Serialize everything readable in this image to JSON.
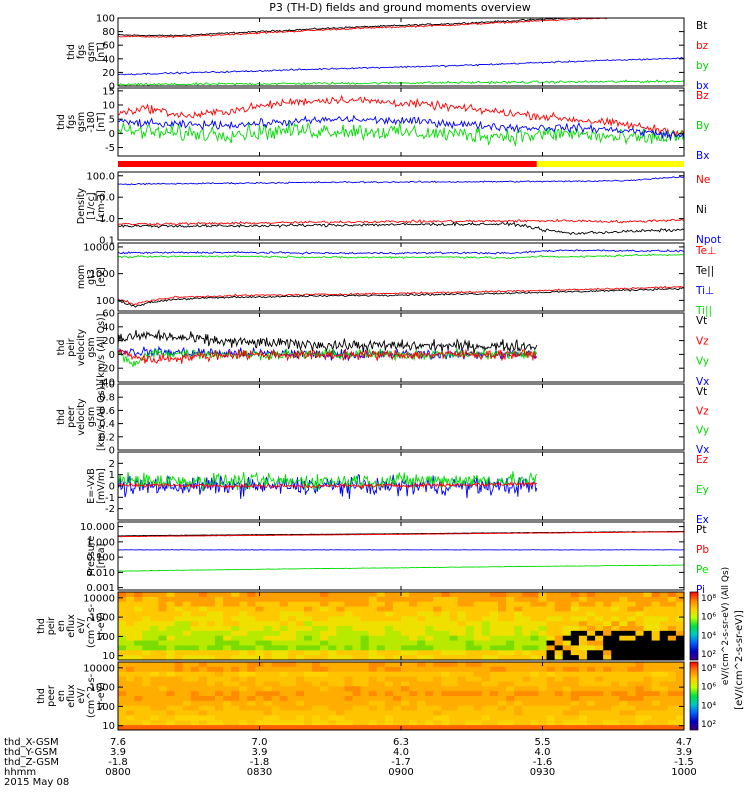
{
  "title": "P3 (TH-D) fields and ground moments overview",
  "colors": {
    "black": "#000000",
    "red": "#ff0000",
    "green": "#00dd00",
    "blue": "#0000ff",
    "yellow": "#ffff00"
  },
  "chart_data": [
    {
      "type": "line",
      "id": "fgs_gsm",
      "ylabel": [
        "thd",
        "fgs",
        "gsm",
        "[nT]"
      ],
      "ylim": [
        0,
        100
      ],
      "yticks": [
        0,
        20,
        40,
        60,
        80,
        100
      ],
      "legend": [
        {
          "text": "Bt",
          "color": "black"
        },
        {
          "text": "bz",
          "color": "red"
        },
        {
          "text": "by",
          "color": "green"
        },
        {
          "text": "bx",
          "color": "blue"
        }
      ],
      "series": [
        {
          "name": "Bt",
          "color": "black",
          "x": [
            0,
            0.1,
            0.2,
            0.3,
            0.4,
            0.5,
            0.6,
            0.7,
            0.8,
            0.9,
            1.0
          ],
          "values": [
            75,
            74,
            78,
            82,
            86,
            89,
            92,
            96,
            100,
            103,
            106
          ],
          "noise": 1
        },
        {
          "name": "bz",
          "color": "red",
          "x": [
            0,
            0.1,
            0.2,
            0.3,
            0.4,
            0.5,
            0.6,
            0.7,
            0.8,
            0.9,
            1.0
          ],
          "values": [
            73,
            72,
            76,
            80,
            84,
            87,
            90,
            94,
            98,
            101,
            104
          ],
          "noise": 1
        },
        {
          "name": "by",
          "color": "green",
          "x": [
            0,
            0.2,
            0.4,
            0.6,
            0.8,
            1.0
          ],
          "values": [
            2,
            3,
            4,
            5,
            6,
            7
          ],
          "noise": 1.5
        },
        {
          "name": "bx",
          "color": "blue",
          "x": [
            0,
            0.2,
            0.4,
            0.6,
            0.8,
            1.0
          ],
          "values": [
            17,
            21,
            26,
            30,
            36,
            41
          ],
          "noise": 1
        }
      ]
    },
    {
      "type": "line",
      "id": "fgs_mfa",
      "ylabel": [
        "thd",
        "fgs",
        "gsm",
        "-180",
        "[nT]"
      ],
      "ylim": [
        -8,
        16
      ],
      "yticks": [
        -5,
        0,
        5,
        10,
        15
      ],
      "legend": [
        {
          "text": "Bz",
          "color": "red"
        },
        {
          "text": "By",
          "color": "green"
        },
        {
          "text": "Bx",
          "color": "blue"
        }
      ],
      "series": [
        {
          "name": "Bz",
          "color": "red",
          "x": [
            0,
            0.05,
            0.12,
            0.2,
            0.3,
            0.4,
            0.55,
            0.7,
            0.8,
            0.9,
            1.0
          ],
          "values": [
            7,
            9,
            6,
            8,
            11,
            12,
            10,
            7,
            5,
            3,
            0
          ],
          "noise": 1.2
        },
        {
          "name": "By",
          "color": "green",
          "x": [
            0,
            0.1,
            0.2,
            0.3,
            0.4,
            0.55,
            0.7,
            0.8,
            0.9,
            1.0
          ],
          "values": [
            1,
            0,
            0,
            1,
            1,
            0,
            -1,
            0,
            -2,
            -1
          ],
          "noise": 2.5
        },
        {
          "name": "Bx",
          "color": "blue",
          "x": [
            0,
            0.1,
            0.2,
            0.3,
            0.4,
            0.55,
            0.7,
            0.8,
            0.9,
            1.0
          ],
          "values": [
            4,
            3,
            3,
            4,
            5,
            4,
            2,
            2,
            1,
            -1
          ],
          "noise": 1.2
        }
      ],
      "mode_bar": [
        {
          "x0": 0,
          "x1": 0.74,
          "color": "red"
        },
        {
          "x0": 0.74,
          "x1": 1.0,
          "color": "yellow"
        }
      ]
    },
    {
      "type": "line",
      "id": "density",
      "yscale": "log",
      "ylabel": [
        "Density",
        "[1/cc]",
        "[cm-3]"
      ],
      "ylim": [
        0.1,
        150
      ],
      "yticks": [
        0.1,
        1.0,
        10.0,
        100.0
      ],
      "yticklabels": [
        "0.1",
        "1.0",
        "10.0",
        "100.0"
      ],
      "legend": [
        {
          "text": "Ne",
          "color": "red"
        },
        {
          "text": "Ni",
          "color": "black"
        },
        {
          "text": "Npot",
          "color": "blue"
        }
      ],
      "series": [
        {
          "name": "Npot",
          "color": "blue",
          "x": [
            0,
            0.2,
            0.4,
            0.6,
            0.8,
            0.9,
            1.0
          ],
          "values": [
            40,
            45,
            50,
            52,
            55,
            60,
            90
          ],
          "noise": 0.03
        },
        {
          "name": "Ne",
          "color": "red",
          "x": [
            0,
            0.2,
            0.4,
            0.6,
            0.8,
            0.9,
            1.0
          ],
          "values": [
            0.55,
            0.6,
            0.7,
            0.75,
            0.8,
            0.7,
            0.9
          ],
          "noise": 0.05
        },
        {
          "name": "Ni",
          "color": "black",
          "x": [
            0,
            0.2,
            0.4,
            0.6,
            0.7,
            0.75,
            0.8,
            0.9,
            1.0
          ],
          "values": [
            0.45,
            0.45,
            0.5,
            0.55,
            0.55,
            0.3,
            0.2,
            0.25,
            0.3
          ],
          "noise": 0.06
        }
      ]
    },
    {
      "type": "line",
      "id": "temperature",
      "yscale": "log",
      "ylabel": [
        "mom",
        "gt3",
        "[eV]"
      ],
      "ylim": [
        40,
        14000
      ],
      "yticks": [
        100,
        1000,
        10000
      ],
      "yticklabels": [
        "100",
        "1000",
        "10000"
      ],
      "legend": [
        {
          "text": "Te⊥",
          "color": "red"
        },
        {
          "text": "Te||",
          "color": "black"
        },
        {
          "text": "Ti⊥",
          "color": "blue"
        },
        {
          "text": "Ti||",
          "color": "green"
        }
      ],
      "series": [
        {
          "name": "Ti⊥",
          "color": "blue",
          "x": [
            0,
            0.2,
            0.4,
            0.6,
            0.7,
            0.75,
            0.8,
            0.9,
            1.0
          ],
          "values": [
            6000,
            6200,
            5800,
            6000,
            5800,
            7000,
            7500,
            7200,
            7000
          ],
          "noise": 0.03
        },
        {
          "name": "Ti||",
          "color": "green",
          "x": [
            0,
            0.2,
            0.4,
            0.6,
            0.7,
            0.75,
            0.8,
            0.9,
            1.0
          ],
          "values": [
            4200,
            4500,
            4000,
            4200,
            3800,
            4500,
            4200,
            4800,
            5200
          ],
          "noise": 0.03
        },
        {
          "name": "Te⊥",
          "color": "red",
          "x": [
            0,
            0.03,
            0.06,
            0.1,
            0.2,
            0.4,
            0.6,
            0.8,
            0.9,
            0.95,
            1.0
          ],
          "values": [
            110,
            70,
            100,
            130,
            150,
            170,
            200,
            250,
            280,
            300,
            320
          ],
          "noise": 0.03
        },
        {
          "name": "Te||",
          "color": "black",
          "x": [
            0,
            0.03,
            0.06,
            0.1,
            0.2,
            0.4,
            0.6,
            0.8,
            0.9,
            0.95,
            1.0
          ],
          "values": [
            95,
            60,
            85,
            110,
            130,
            150,
            170,
            210,
            240,
            260,
            280
          ],
          "noise": 0.03
        }
      ]
    },
    {
      "type": "line",
      "id": "ion_velocity",
      "ylabel": [
        "thd",
        "peir",
        "velocity",
        "gsm",
        "[km/s (All Qs)]"
      ],
      "ylim": [
        -40,
        60
      ],
      "yticks": [
        -40,
        -20,
        0,
        20,
        40,
        60
      ],
      "xmax": 0.74,
      "legend": [
        {
          "text": "Vt",
          "color": "black"
        },
        {
          "text": "Vz",
          "color": "red"
        },
        {
          "text": "Vy",
          "color": "green"
        },
        {
          "text": "Vx",
          "color": "blue"
        }
      ],
      "series": [
        {
          "name": "Vt",
          "color": "black",
          "x": [
            0,
            0.05,
            0.2,
            0.4,
            0.6,
            0.74
          ],
          "values": [
            22,
            28,
            18,
            13,
            12,
            12
          ],
          "noise": 7
        },
        {
          "name": "Vx",
          "color": "blue",
          "x": [
            0,
            0.2,
            0.4,
            0.6,
            0.74
          ],
          "values": [
            4,
            2,
            0,
            0,
            0
          ],
          "noise": 6
        },
        {
          "name": "Vy",
          "color": "green",
          "x": [
            0,
            0.03,
            0.06,
            0.2,
            0.4,
            0.6,
            0.74
          ],
          "values": [
            0,
            -15,
            2,
            0,
            0,
            0,
            0
          ],
          "noise": 6
        },
        {
          "name": "Vz",
          "color": "red",
          "x": [
            0,
            0.05,
            0.2,
            0.4,
            0.6,
            0.74
          ],
          "values": [
            5,
            -8,
            0,
            -1,
            0,
            0
          ],
          "noise": 6
        }
      ]
    },
    {
      "type": "line",
      "id": "electron_velocity",
      "ylabel": [
        "thd",
        "peer",
        "velocity",
        "gsm",
        "[km/s (All Qs)]"
      ],
      "ylim": [
        0,
        1
      ],
      "yticks": [
        0,
        0.2,
        0.4,
        0.6,
        0.8,
        1.0
      ],
      "yticklabels": [
        "0",
        "0.2",
        "0.4",
        "0.6",
        "0.8",
        "1.0"
      ],
      "legend": [
        {
          "text": "Vt",
          "color": "black"
        },
        {
          "text": "Vz",
          "color": "red"
        },
        {
          "text": "Vy",
          "color": "green"
        },
        {
          "text": "Vx",
          "color": "blue"
        }
      ],
      "series": []
    },
    {
      "type": "line",
      "id": "efield",
      "ylabel": [
        "E=-VxB",
        "[mV/m]"
      ],
      "ylim": [
        -3,
        3
      ],
      "yticks": [
        -2,
        -1,
        0,
        1,
        2
      ],
      "xmax": 0.74,
      "legend": [
        {
          "text": "Ez",
          "color": "red"
        },
        {
          "text": "Ey",
          "color": "green"
        },
        {
          "text": "Ex",
          "color": "blue"
        }
      ],
      "series": [
        {
          "name": "Ex",
          "color": "blue",
          "x": [
            0,
            0.2,
            0.4,
            0.6,
            0.74
          ],
          "values": [
            0,
            0,
            0,
            0,
            0
          ],
          "noise": 0.7
        },
        {
          "name": "Ey",
          "color": "green",
          "x": [
            0,
            0.2,
            0.4,
            0.6,
            0.74
          ],
          "values": [
            0.5,
            0.4,
            0.4,
            0.5,
            0.5
          ],
          "noise": 0.6
        },
        {
          "name": "Ez",
          "color": "red",
          "x": [
            0,
            0.2,
            0.4,
            0.6,
            0.74
          ],
          "values": [
            0.1,
            0,
            0,
            0.1,
            0.2
          ],
          "noise": 0.15
        }
      ]
    },
    {
      "type": "line",
      "id": "pressure",
      "yscale": "log",
      "ylabel": [
        "Pressure",
        "[nPa]"
      ],
      "ylim": [
        0.0007,
        20
      ],
      "yticks": [
        0.001,
        0.01,
        0.1,
        1.0,
        10.0
      ],
      "yticklabels": [
        "0.001",
        "0.010",
        "0.100",
        "1.000",
        "10.000"
      ],
      "legend": [
        {
          "text": "Pt",
          "color": "black"
        },
        {
          "text": "Pb",
          "color": "red"
        },
        {
          "text": "Pe",
          "color": "green"
        },
        {
          "text": "Pi",
          "color": "blue"
        }
      ],
      "series": [
        {
          "name": "Pt",
          "color": "black",
          "x": [
            0,
            0.5,
            1.0
          ],
          "values": [
            2.5,
            3.4,
            4.8
          ],
          "noise": 0.01
        },
        {
          "name": "Pb",
          "color": "red",
          "x": [
            0,
            0.5,
            1.0
          ],
          "values": [
            2.2,
            3.1,
            4.5
          ],
          "noise": 0.01
        },
        {
          "name": "Pi",
          "color": "blue",
          "x": [
            0,
            0.5,
            1.0
          ],
          "values": [
            0.3,
            0.3,
            0.3
          ],
          "noise": 0.01
        },
        {
          "name": "Pe",
          "color": "green",
          "x": [
            0,
            0.5,
            1.0
          ],
          "values": [
            0.012,
            0.02,
            0.03
          ],
          "noise": 0.01
        }
      ]
    },
    {
      "type": "heatmap",
      "id": "ion_eflux",
      "yscale": "log",
      "ylabel": [
        "thd",
        "peir",
        "en",
        "eflux",
        "eV/",
        "(cm^2-s-",
        "sr-eV)"
      ],
      "ylim": [
        6,
        20000
      ],
      "yticks": [
        10,
        100,
        1000,
        10000
      ],
      "yticklabels": [
        "10",
        "100",
        "1000",
        "10000"
      ]
    },
    {
      "type": "heatmap",
      "id": "electron_eflux",
      "yscale": "log",
      "ylabel": [
        "thd",
        "peer",
        "en",
        "eflux",
        "eV/",
        "(cm^2-s-",
        "sr-eV)"
      ],
      "ylim": [
        6,
        20000
      ],
      "yticks": [
        10,
        100,
        1000,
        10000
      ],
      "yticklabels": [
        "10",
        "100",
        "1000",
        "10000"
      ]
    }
  ],
  "colorbars": [
    {
      "ticks": [
        "10⁸",
        "10⁶",
        "10⁴",
        "10²"
      ],
      "label": "eV/(cm^2-s-sr-eV) (All Qs)"
    },
    {
      "ticks": [
        "10⁸",
        "10⁶",
        "10⁴",
        "10²"
      ],
      "label": "[eV/(cm^2-s-sr-eV)]"
    }
  ],
  "xaxis": {
    "rows": [
      {
        "label": "thd_X-GSM",
        "values": [
          "7.6",
          "7.0",
          "6.3",
          "5.5",
          "4.7"
        ]
      },
      {
        "label": "thd_Y-GSM",
        "values": [
          "3.9",
          "3.9",
          "4.0",
          "4.0",
          "3.9"
        ]
      },
      {
        "label": "thd_Z-GSM",
        "values": [
          "-1.8",
          "-1.8",
          "-1.7",
          "-1.6",
          "-1.5"
        ]
      },
      {
        "label": "hhmm",
        "values": [
          "0800",
          "0830",
          "0900",
          "0930",
          "1000"
        ]
      }
    ],
    "date": "2015 May 08"
  }
}
